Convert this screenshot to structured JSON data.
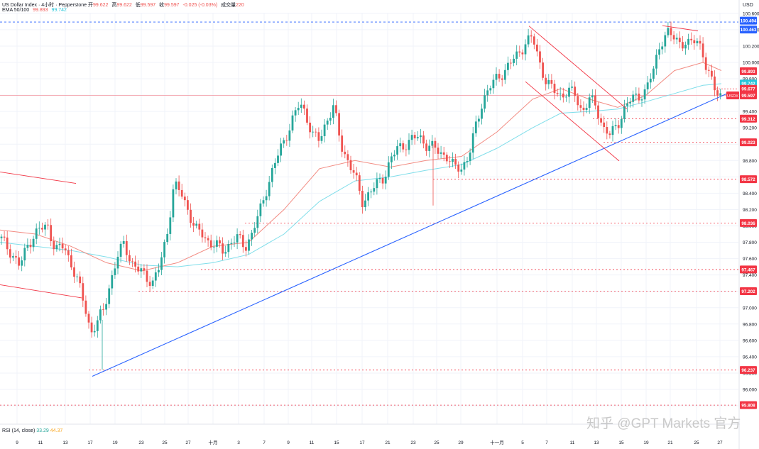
{
  "header": {
    "symbol": "US Dollar Index · 4小时 · Pepperstone",
    "o_label": "开",
    "o_value": "99.622",
    "h_label": "高",
    "h_value": "99.622",
    "l_label": "低",
    "l_value": "99.597",
    "c_label": "收",
    "c_value": "99.597",
    "change": "-0.025 (-0.03%)",
    "volume_label": "成交量",
    "volume_value": "220",
    "ema_label": "EMA 50/100",
    "ema50_value": "99.893",
    "ema100_value": "99.742"
  },
  "rsi": {
    "label": "RSI (14, close)",
    "value1": "33.29",
    "value2": "44.37"
  },
  "watermark": "知乎 @GPT Markets 官方",
  "currency": "USD",
  "colors": {
    "up": "#26a69a",
    "down": "#ef5350",
    "ema50": "#f28b82",
    "ema100": "#80deea",
    "trend": "#2962ff",
    "level": "#f23645"
  },
  "chart_data": {
    "type": "candlestick",
    "y_range": [
      95.7,
      100.6
    ],
    "y_ticks": [
      "100.600",
      "100.400",
      "100.200",
      "100.000",
      "99.800",
      "99.600",
      "99.400",
      "99.200",
      "99.000",
      "98.800",
      "98.600",
      "98.400",
      "98.200",
      "98.000",
      "97.800",
      "97.600",
      "97.400",
      "97.200",
      "97.000",
      "96.800",
      "96.600",
      "96.400",
      "96.200",
      "96.000",
      "95.800"
    ],
    "x_ticks": [
      "9",
      "11",
      "13",
      "17",
      "19",
      "23",
      "25",
      "27",
      "十月",
      "3",
      "7",
      "9",
      "11",
      "15",
      "17",
      "21",
      "23",
      "25",
      "29",
      "十一月",
      "5",
      "7",
      "11",
      "13",
      "15",
      "19",
      "21",
      "25",
      "27"
    ],
    "horizontal_levels": [
      {
        "value": 100.494,
        "label": "100.494",
        "style": "blue-dashed"
      },
      {
        "value": 100.463,
        "label": "100.463",
        "style": "blue"
      },
      {
        "value": 99.893,
        "label": "99.893",
        "style": "red"
      },
      {
        "value": 99.742,
        "label": "99.742",
        "style": "cyan"
      },
      {
        "value": 99.677,
        "label": "99.677",
        "style": "red"
      },
      {
        "value": 99.597,
        "label": "99.597",
        "tag": "USDX",
        "style": "red"
      },
      {
        "value": 99.312,
        "label": "99.312",
        "style": "red-dashed"
      },
      {
        "value": 99.023,
        "label": "99.023",
        "style": "red-dashed"
      },
      {
        "value": 98.572,
        "label": "98.572",
        "style": "red-dashed"
      },
      {
        "value": 98.036,
        "label": "98.036",
        "style": "red-dashed"
      },
      {
        "value": 97.467,
        "label": "97.467",
        "style": "red-dashed"
      },
      {
        "value": 97.202,
        "label": "97.202",
        "style": "red-dashed"
      },
      {
        "value": 96.237,
        "label": "96.237",
        "style": "red-dashed"
      },
      {
        "value": 95.808,
        "label": "95.808",
        "style": "red-dashed"
      }
    ],
    "close_path": [
      [
        0,
        97.85
      ],
      [
        14,
        97.7
      ],
      [
        28,
        97.5
      ],
      [
        40,
        97.8
      ],
      [
        55,
        97.95
      ],
      [
        68,
        98.0
      ],
      [
        78,
        97.7
      ],
      [
        90,
        97.75
      ],
      [
        100,
        97.55
      ],
      [
        110,
        97.3
      ],
      [
        120,
        97.0
      ],
      [
        128,
        96.7
      ],
      [
        136,
        96.8
      ],
      [
        145,
        96.95
      ],
      [
        155,
        97.3
      ],
      [
        165,
        97.6
      ],
      [
        175,
        97.8
      ],
      [
        185,
        97.55
      ],
      [
        195,
        97.45
      ],
      [
        205,
        97.4
      ],
      [
        215,
        97.3
      ],
      [
        225,
        97.5
      ],
      [
        235,
        97.9
      ],
      [
        245,
        98.5
      ],
      [
        255,
        98.4
      ],
      [
        265,
        98.2
      ],
      [
        275,
        97.95
      ],
      [
        285,
        97.9
      ],
      [
        295,
        97.8
      ],
      [
        305,
        97.75
      ],
      [
        315,
        97.7
      ],
      [
        325,
        97.8
      ],
      [
        335,
        97.85
      ],
      [
        345,
        97.75
      ],
      [
        355,
        97.9
      ],
      [
        365,
        98.15
      ],
      [
        375,
        98.45
      ],
      [
        385,
        98.7
      ],
      [
        395,
        98.95
      ],
      [
        405,
        99.15
      ],
      [
        415,
        99.35
      ],
      [
        422,
        99.5
      ],
      [
        430,
        99.4
      ],
      [
        440,
        99.1
      ],
      [
        450,
        99.05
      ],
      [
        460,
        99.3
      ],
      [
        470,
        99.45
      ],
      [
        480,
        99.0
      ],
      [
        490,
        98.8
      ],
      [
        500,
        98.6
      ],
      [
        510,
        98.3
      ],
      [
        520,
        98.4
      ],
      [
        530,
        98.5
      ],
      [
        540,
        98.6
      ],
      [
        550,
        98.8
      ],
      [
        560,
        98.95
      ],
      [
        570,
        99.0
      ],
      [
        580,
        99.05
      ],
      [
        590,
        99.1
      ],
      [
        600,
        99.0
      ],
      [
        610,
        98.95
      ],
      [
        620,
        98.9
      ],
      [
        630,
        98.85
      ],
      [
        640,
        98.7
      ],
      [
        650,
        98.72
      ],
      [
        660,
        98.85
      ],
      [
        670,
        99.2
      ],
      [
        680,
        99.55
      ],
      [
        690,
        99.7
      ],
      [
        700,
        99.8
      ],
      [
        710,
        99.9
      ],
      [
        720,
        100.0
      ],
      [
        730,
        100.1
      ],
      [
        740,
        100.25
      ],
      [
        750,
        100.3
      ],
      [
        760,
        100.0
      ],
      [
        770,
        99.75
      ],
      [
        780,
        99.65
      ],
      [
        790,
        99.6
      ],
      [
        800,
        99.65
      ],
      [
        810,
        99.6
      ],
      [
        820,
        99.4
      ],
      [
        830,
        99.55
      ],
      [
        840,
        99.45
      ],
      [
        850,
        99.2
      ],
      [
        860,
        99.1
      ],
      [
        870,
        99.25
      ],
      [
        880,
        99.45
      ],
      [
        890,
        99.55
      ],
      [
        900,
        99.6
      ],
      [
        910,
        99.65
      ],
      [
        920,
        99.9
      ],
      [
        930,
        100.25
      ],
      [
        940,
        100.35
      ],
      [
        950,
        100.3
      ],
      [
        960,
        100.25
      ],
      [
        970,
        100.2
      ],
      [
        980,
        100.3
      ],
      [
        988,
        100.2
      ],
      [
        996,
        99.85
      ],
      [
        1004,
        99.75
      ],
      [
        1010,
        99.65
      ],
      [
        1016,
        99.6
      ]
    ],
    "ema50_path": [
      [
        0,
        97.95
      ],
      [
        50,
        97.9
      ],
      [
        100,
        97.75
      ],
      [
        150,
        97.55
      ],
      [
        200,
        97.45
      ],
      [
        250,
        97.55
      ],
      [
        300,
        97.75
      ],
      [
        350,
        97.8
      ],
      [
        400,
        98.2
      ],
      [
        450,
        98.7
      ],
      [
        500,
        98.8
      ],
      [
        550,
        98.72
      ],
      [
        600,
        98.8
      ],
      [
        650,
        98.85
      ],
      [
        700,
        99.15
      ],
      [
        750,
        99.55
      ],
      [
        790,
        99.68
      ],
      [
        830,
        99.55
      ],
      [
        870,
        99.45
      ],
      [
        910,
        99.6
      ],
      [
        950,
        99.9
      ],
      [
        990,
        100.0
      ],
      [
        1016,
        99.9
      ]
    ],
    "ema100_path": [
      [
        0,
        97.8
      ],
      [
        50,
        97.75
      ],
      [
        100,
        97.7
      ],
      [
        150,
        97.62
      ],
      [
        200,
        97.52
      ],
      [
        250,
        97.5
      ],
      [
        300,
        97.55
      ],
      [
        350,
        97.65
      ],
      [
        400,
        97.9
      ],
      [
        450,
        98.3
      ],
      [
        500,
        98.55
      ],
      [
        550,
        98.6
      ],
      [
        600,
        98.68
      ],
      [
        650,
        98.75
      ],
      [
        700,
        98.95
      ],
      [
        750,
        99.2
      ],
      [
        790,
        99.38
      ],
      [
        830,
        99.4
      ],
      [
        870,
        99.43
      ],
      [
        910,
        99.52
      ],
      [
        950,
        99.62
      ],
      [
        990,
        99.72
      ],
      [
        1016,
        99.74
      ]
    ],
    "trendlines": [
      {
        "from": [
          130,
          96.16
        ],
        "to": [
          1023,
          99.615
        ],
        "color": "blue"
      },
      {
        "from": [
          0,
          98.66
        ],
        "to": [
          107,
          98.52
        ],
        "color": "red"
      },
      {
        "from": [
          0,
          97.28
        ],
        "to": [
          115,
          97.12
        ],
        "color": "red"
      },
      {
        "from": [
          745,
          100.445
        ],
        "to": [
          883,
          99.43
        ],
        "color": "red"
      },
      {
        "from": [
          740,
          99.765
        ],
        "to": [
          872,
          98.795
        ],
        "color": "red"
      },
      {
        "from": [
          933,
          100.45
        ],
        "to": [
          983,
          100.385
        ],
        "color": "red"
      }
    ]
  }
}
